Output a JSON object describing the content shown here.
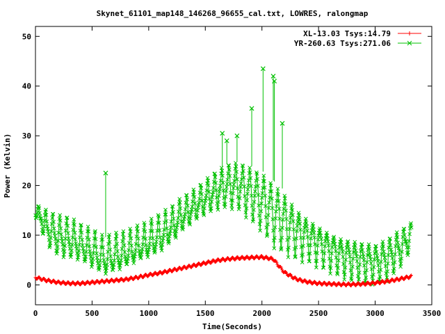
{
  "chart_data": {
    "type": "line",
    "title": "Skynet_61101_map148_146268_96655_cal.txt, LOWRES, ralongmap",
    "xlabel": "Time(Seconds)",
    "ylabel": "Power (Kelvin)",
    "xlim": [
      0,
      3500
    ],
    "ylim": [
      -4,
      52
    ],
    "xticks": [
      0,
      500,
      1000,
      1500,
      2000,
      2500,
      3000,
      3500
    ],
    "yticks": [
      0,
      10,
      20,
      30,
      40,
      50
    ],
    "legend_position": "top-right",
    "series": [
      {
        "name": "XL-13.03 Tsys:14.79",
        "color": "#ff0000",
        "marker": "plus",
        "x": [
          0,
          100,
          200,
          300,
          400,
          500,
          600,
          700,
          800,
          900,
          1000,
          1100,
          1200,
          1300,
          1400,
          1500,
          1600,
          1700,
          1800,
          1900,
          2000,
          2100,
          2150,
          2200,
          2300,
          2400,
          2500,
          2600,
          2700,
          2800,
          2900,
          3000,
          3100,
          3200,
          3320
        ],
        "y": [
          1.5,
          0.9,
          0.5,
          0.3,
          0.3,
          0.5,
          0.7,
          0.9,
          1.1,
          1.5,
          2.0,
          2.4,
          2.9,
          3.4,
          3.9,
          4.4,
          4.9,
          5.2,
          5.4,
          5.5,
          5.6,
          5.2,
          3.8,
          2.5,
          1.2,
          0.6,
          0.3,
          0.2,
          0.1,
          0.1,
          0.2,
          0.4,
          0.7,
          1.1,
          1.7
        ]
      },
      {
        "name": "YR-260.63 Tsys:271.06",
        "color": "#00c000",
        "marker": "x",
        "envelope_x": [
          0,
          100,
          200,
          300,
          400,
          500,
          600,
          700,
          800,
          900,
          1000,
          1100,
          1200,
          1300,
          1400,
          1500,
          1600,
          1700,
          1800,
          1900,
          2000,
          2100,
          2200,
          2300,
          2400,
          2500,
          2600,
          2700,
          2800,
          2900,
          3000,
          3100,
          3200,
          3320
        ],
        "envelope_upper": [
          16,
          15,
          14,
          13.5,
          12,
          11,
          9.5,
          10,
          10.5,
          11.5,
          12.5,
          14,
          15.5,
          17.5,
          19,
          21,
          23,
          24.5,
          25,
          24,
          23,
          21,
          19,
          16,
          14,
          12.5,
          11,
          10,
          9.5,
          9,
          8.5,
          9.5,
          11,
          12.5
        ],
        "envelope_lower": [
          14,
          8,
          5.5,
          5,
          4.5,
          3,
          1.5,
          2,
          3,
          4,
          5,
          6,
          8,
          10.5,
          12.5,
          14,
          15,
          15.5,
          15,
          13,
          11,
          8,
          6.5,
          5.5,
          5,
          4,
          3,
          2,
          1,
          0.5,
          0.5,
          1,
          3,
          7
        ],
        "spikes": [
          {
            "x": 620,
            "y": 22.5
          },
          {
            "x": 1650,
            "y": 30.5
          },
          {
            "x": 1690,
            "y": 29
          },
          {
            "x": 1780,
            "y": 30
          },
          {
            "x": 1910,
            "y": 35.5
          },
          {
            "x": 2010,
            "y": 43.5
          },
          {
            "x": 2100,
            "y": 42
          },
          {
            "x": 2110,
            "y": 41
          },
          {
            "x": 2180,
            "y": 32.5
          }
        ]
      }
    ]
  }
}
